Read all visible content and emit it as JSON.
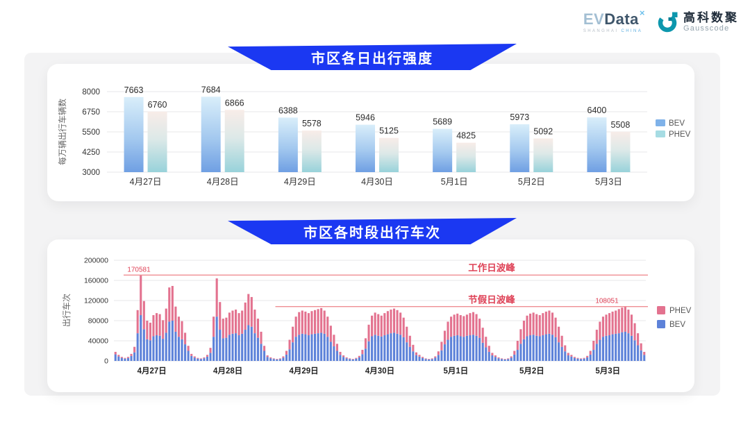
{
  "header": {
    "evdata": {
      "ev": "EV",
      "data": "Data",
      "sup": "×",
      "sub_left": "SHANGHAI ",
      "sub_right": "CHINA"
    },
    "gausscode": {
      "cn": "高科数聚",
      "en": "Gausscode"
    }
  },
  "sections": [
    {
      "title": "市区各日出行强度"
    },
    {
      "title": "市区各时段出行车次"
    }
  ],
  "colors": {
    "banner_blue": "#1b38f2",
    "bev_blue": "#5d82d9",
    "phev_pink": "#e3728f",
    "bev_gradient_top": "#d9eefa",
    "bev_gradient_mid": "#a4c9ef",
    "bev_gradient_bottom": "#6f9fe3",
    "phev_gradient_top": "#f8ece8",
    "phev_gradient_mid": "#dde9e8",
    "phev_gradient_bottom": "#98d2da",
    "legend_bev": "#7fb2e9",
    "legend_phev": "#a6dce3",
    "annotation_text_red": "#df4156",
    "annotation_line_red": "#ef8d93",
    "grid_gray": "#e7e7e9",
    "tick_text": "#333333"
  },
  "chart_data": [
    {
      "type": "bar",
      "title": "市区各日出行强度",
      "ylabel": "每万辆出行车辆数",
      "categories": [
        "4月27日",
        "4月28日",
        "4月29日",
        "4月30日",
        "5月1日",
        "5月2日",
        "5月3日"
      ],
      "series": [
        {
          "name": "BEV",
          "values": [
            7663,
            7684,
            6388,
            5946,
            5689,
            5973,
            6400
          ]
        },
        {
          "name": "PHEV",
          "values": [
            6760,
            6866,
            5578,
            5125,
            4825,
            5092,
            5508
          ]
        }
      ],
      "ylim": [
        3000,
        8000
      ],
      "yticks": [
        3000,
        4250,
        5500,
        6750,
        8000
      ],
      "grid": true,
      "legend_position": "right",
      "legend": [
        "BEV",
        "PHEV"
      ]
    },
    {
      "type": "bar",
      "stacked": true,
      "title": "市区各时段出行车次",
      "ylabel": "出行车次",
      "categories": [
        "4月27日",
        "4月28日",
        "4月29日",
        "4月30日",
        "5月1日",
        "5月2日",
        "5月3日"
      ],
      "hours_per_day": 24,
      "ylim": [
        0,
        200000
      ],
      "yticks": [
        0,
        40000,
        80000,
        120000,
        160000,
        200000
      ],
      "grid": true,
      "legend_position": "right",
      "legend": [
        "PHEV",
        "BEV"
      ],
      "annotations": [
        {
          "label": "工作日波峰",
          "value": 170581,
          "value_label": "170581"
        },
        {
          "label": "节假日波峰",
          "value": 108051,
          "value_label": "108051"
        }
      ],
      "series": [
        {
          "name": "BEV",
          "values": [
            13000,
            8800,
            6000,
            4500,
            5800,
            9800,
            17000,
            55000,
            91000,
            63000,
            43000,
            41000,
            49000,
            51000,
            50000,
            44000,
            56000,
            78000,
            80000,
            58000,
            48000,
            43000,
            33000,
            20000,
            10000,
            6600,
            4500,
            3800,
            5200,
            8500,
            16000,
            48000,
            88000,
            62000,
            45000,
            46000,
            52000,
            54000,
            55000,
            51000,
            54000,
            62000,
            71000,
            68000,
            55000,
            46000,
            34000,
            20000,
            8000,
            5200,
            3800,
            3000,
            3700,
            6400,
            12500,
            23000,
            37000,
            48000,
            52000,
            54000,
            53000,
            51000,
            53000,
            54000,
            55000,
            56000,
            54000,
            48000,
            38000,
            29000,
            20000,
            12000,
            8000,
            5200,
            3800,
            3000,
            4400,
            7000,
            13500,
            24500,
            39000,
            49000,
            52000,
            50000,
            48500,
            51000,
            53000,
            55000,
            56000,
            54000,
            52000,
            47000,
            37000,
            28000,
            19000,
            11500,
            8700,
            5900,
            3800,
            3000,
            3700,
            6400,
            12000,
            21000,
            33000,
            42000,
            48000,
            50000,
            51000,
            49000,
            48000,
            50000,
            51000,
            52000,
            50000,
            46000,
            36000,
            27000,
            18000,
            11000,
            8000,
            5200,
            3800,
            3000,
            3700,
            6400,
            12500,
            22000,
            34000,
            43000,
            49000,
            51000,
            52000,
            50000,
            49000,
            51000,
            53000,
            54000,
            52000,
            47000,
            37000,
            28000,
            19000,
            11000,
            8700,
            5900,
            4500,
            3800,
            4400,
            7000,
            12500,
            22000,
            34000,
            42000,
            48000,
            50000,
            51000,
            53000,
            54000,
            55000,
            57000,
            58000,
            55000,
            50000,
            41000,
            31000,
            21000,
            12000
          ]
        },
        {
          "name": "PHEV",
          "values": [
            5000,
            3200,
            2000,
            1500,
            2200,
            4200,
            11000,
            46000,
            79581,
            56000,
            37000,
            35000,
            42000,
            44000,
            43000,
            37000,
            48000,
            68000,
            69000,
            50000,
            40000,
            36000,
            23000,
            10000,
            4000,
            2400,
            1500,
            1200,
            1800,
            3500,
            10000,
            40000,
            76000,
            55000,
            39000,
            40000,
            44000,
            46000,
            47000,
            44000,
            46000,
            54000,
            62000,
            59000,
            47000,
            38000,
            24000,
            10000,
            3000,
            1800,
            1200,
            1000,
            1300,
            2600,
            7500,
            19000,
            31000,
            40000,
            45000,
            46000,
            45000,
            44000,
            46000,
            47000,
            48000,
            49000,
            46000,
            40000,
            32000,
            23000,
            14000,
            6000,
            3000,
            1800,
            1200,
            1000,
            1600,
            3000,
            8500,
            20500,
            33000,
            41000,
            44000,
            43000,
            41500,
            44000,
            46000,
            47000,
            48000,
            47000,
            44000,
            39000,
            31000,
            22000,
            13000,
            5500,
            3300,
            2100,
            1200,
            1000,
            1300,
            2600,
            7000,
            17000,
            27000,
            36000,
            40000,
            42000,
            43000,
            42000,
            41000,
            42000,
            44000,
            45000,
            43000,
            38000,
            30000,
            21000,
            12000,
            5000,
            3000,
            1800,
            1200,
            1000,
            1300,
            2600,
            7500,
            18000,
            29000,
            37000,
            41000,
            43000,
            44000,
            43000,
            42000,
            44000,
            45000,
            46000,
            44000,
            39000,
            31000,
            22000,
            12000,
            5000,
            3300,
            2100,
            1500,
            1200,
            1600,
            3000,
            7500,
            18000,
            28000,
            36000,
            40000,
            42000,
            44000,
            45000,
            46000,
            48000,
            49000,
            50051,
            47000,
            42000,
            34000,
            24000,
            14000,
            6000
          ]
        }
      ]
    }
  ]
}
